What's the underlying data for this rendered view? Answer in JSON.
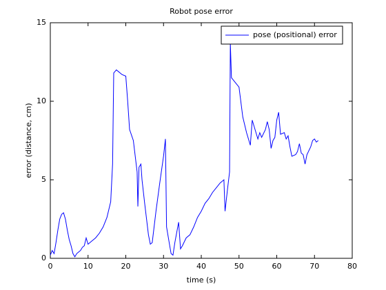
{
  "chart_data": {
    "type": "line",
    "title": "Robot pose error",
    "xlabel": "time (s)",
    "ylabel": "error (distance, cm)",
    "x": [
      0,
      0.5,
      1,
      1.5,
      2,
      2.5,
      3,
      3.5,
      4,
      4.5,
      5,
      5.5,
      6,
      6.5,
      7,
      7.5,
      8,
      8.5,
      9,
      9.5,
      10,
      11,
      12,
      13,
      14,
      15,
      16,
      16.5,
      16.8,
      17.5,
      18,
      19,
      20,
      20.5,
      21,
      22,
      22.5,
      23,
      23.2,
      23.5,
      24,
      24.3,
      25,
      26,
      26.5,
      27,
      28,
      29,
      30,
      30.5,
      30.8,
      31.5,
      32,
      32.5,
      33,
      34,
      34.5,
      35,
      36,
      37,
      38,
      39,
      40,
      41,
      42,
      43,
      44,
      45,
      46,
      46.3,
      47,
      47.5,
      47.7,
      48,
      49,
      50,
      51,
      52,
      53,
      53.5,
      54,
      55,
      55.5,
      56,
      57,
      57.5,
      58,
      58.5,
      59,
      59.5,
      60,
      60.5,
      61,
      62,
      62.5,
      63,
      63.5,
      64,
      65,
      65.5,
      66,
      66.5,
      67,
      67.5,
      68,
      69,
      69.5,
      70,
      70.5,
      71
    ],
    "series": [
      {
        "name": "pose (positional) error",
        "color": "#0000ff",
        "values": [
          0.2,
          0.5,
          0.3,
          1.0,
          1.8,
          2.5,
          2.8,
          2.9,
          2.5,
          1.8,
          1.2,
          0.8,
          0.3,
          0.1,
          0.3,
          0.4,
          0.5,
          0.7,
          0.8,
          1.3,
          0.9,
          1.1,
          1.3,
          1.6,
          2.0,
          2.6,
          3.6,
          6.0,
          11.8,
          12.0,
          11.9,
          11.7,
          11.6,
          10.0,
          8.2,
          7.5,
          6.5,
          5.5,
          3.3,
          5.8,
          6.0,
          5.0,
          3.5,
          1.5,
          0.9,
          1.0,
          3.0,
          4.8,
          6.5,
          7.6,
          2.0,
          1.0,
          0.3,
          0.2,
          1.0,
          2.3,
          0.6,
          0.8,
          1.3,
          1.5,
          2.0,
          2.6,
          3.0,
          3.5,
          3.8,
          4.2,
          4.5,
          4.8,
          5.0,
          3.0,
          4.5,
          5.5,
          13.7,
          11.5,
          11.2,
          10.9,
          9.0,
          8.0,
          7.2,
          8.8,
          8.4,
          7.6,
          8.0,
          7.7,
          8.2,
          8.7,
          8.2,
          7.0,
          7.5,
          7.7,
          8.8,
          9.3,
          7.9,
          8.0,
          7.6,
          7.8,
          7.1,
          6.5,
          6.6,
          6.8,
          7.3,
          6.7,
          6.6,
          6.0,
          6.6,
          7.1,
          7.5,
          7.6,
          7.4,
          7.5
        ]
      }
    ],
    "xlim": [
      0,
      80
    ],
    "xticks": [
      0,
      10,
      20,
      30,
      40,
      50,
      60,
      70,
      80
    ],
    "ylim": [
      0,
      15
    ],
    "yticks": [
      0,
      5,
      10,
      15
    ],
    "legend": "upper right"
  }
}
